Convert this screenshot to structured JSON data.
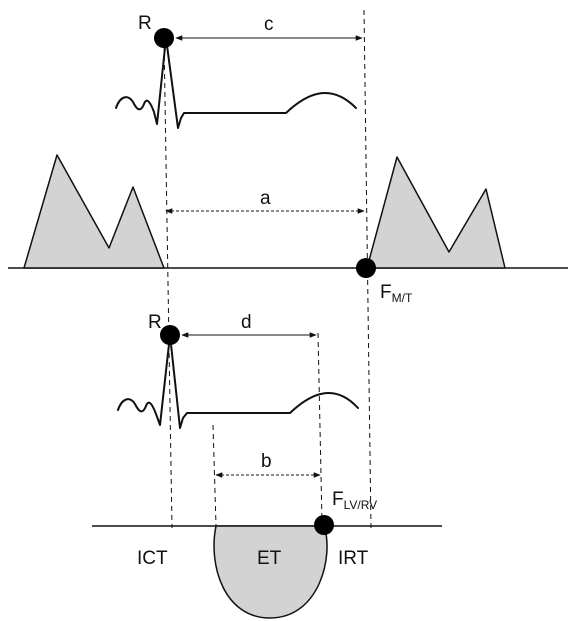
{
  "labels": {
    "r_top": "R",
    "r_bottom": "R",
    "interval_c": "c",
    "interval_a": "a",
    "interval_d": "d",
    "interval_b": "b",
    "f_mt_main": "F",
    "f_mt_sub": "M/T",
    "f_lvrv_main": "F",
    "f_lvrv_sub": "LV/RV",
    "ict": "ICT",
    "et": "ET",
    "irt": "IRT"
  },
  "colors": {
    "line": "#111111",
    "fill": "#d3d3d3",
    "dot": "#000000"
  }
}
